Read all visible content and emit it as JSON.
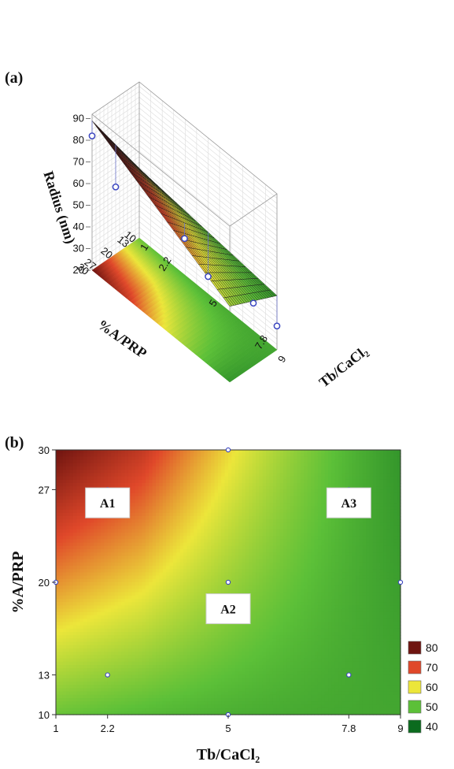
{
  "panel_labels": {
    "a": "(a)",
    "b": "(b)"
  },
  "colors": {
    "c40": "#0b6b1e",
    "c50": "#5cc038",
    "c60": "#ece63a",
    "c70": "#e0482a",
    "c80": "#6e1410"
  },
  "chart_data": [
    {
      "type": "surface3d",
      "z_label": "Radius (nm)",
      "x_label": "Tb/CaCl₂",
      "y_label": "%A/PRP",
      "z_ticks": [
        "20",
        "30",
        "40",
        "50",
        "60",
        "70",
        "80",
        "90"
      ],
      "x_ticks": [
        "1",
        "2.2",
        "5",
        "7.8",
        "9"
      ],
      "y_ticks": [
        "10",
        "13",
        "20",
        "27",
        "30"
      ],
      "surface_corners": [
        {
          "x": 1,
          "y": 30,
          "z": 89
        },
        {
          "x": 9,
          "y": 30,
          "z": 55
        },
        {
          "x": 1,
          "y": 10,
          "z": 52
        },
        {
          "x": 9,
          "y": 10,
          "z": 45
        }
      ],
      "points": [
        {
          "x": 1,
          "y": 30,
          "z": 82
        },
        {
          "x": 1,
          "y": 20,
          "z": 51
        },
        {
          "x": 5,
          "y": 20,
          "z": 53
        },
        {
          "x": 9,
          "y": 20,
          "z": 49
        },
        {
          "x": 5,
          "y": 10,
          "z": 28
        },
        {
          "x": 9,
          "y": 10,
          "z": 31
        }
      ]
    },
    {
      "type": "heatmap",
      "xlabel": "Tb/CaCl₂",
      "ylabel": "%A/PRP",
      "x_ticks": [
        1,
        2.2,
        5,
        7.8,
        9
      ],
      "y_ticks": [
        10,
        13,
        20,
        27,
        30
      ],
      "xlim": [
        1,
        9
      ],
      "ylim": [
        10,
        30
      ],
      "points": [
        {
          "x": 2.2,
          "y": 27
        },
        {
          "x": 7.8,
          "y": 27
        },
        {
          "x": 1,
          "y": 20
        },
        {
          "x": 5,
          "y": 20
        },
        {
          "x": 9,
          "y": 20
        },
        {
          "x": 2.2,
          "y": 13
        },
        {
          "x": 7.8,
          "y": 13
        },
        {
          "x": 5,
          "y": 30
        },
        {
          "x": 5,
          "y": 10
        }
      ],
      "regions": [
        {
          "label": "A1",
          "x": 2.2,
          "y": 26
        },
        {
          "label": "A2",
          "x": 5,
          "y": 18
        },
        {
          "label": "A3",
          "x": 7.8,
          "y": 26
        }
      ],
      "legend": [
        {
          "value": "80",
          "color": "#6e1410"
        },
        {
          "value": "70",
          "color": "#e0482a"
        },
        {
          "value": "60",
          "color": "#ece63a"
        },
        {
          "value": "50",
          "color": "#5cc038"
        },
        {
          "value": "40",
          "color": "#0b6b1e"
        }
      ],
      "legend_position": "right"
    }
  ]
}
